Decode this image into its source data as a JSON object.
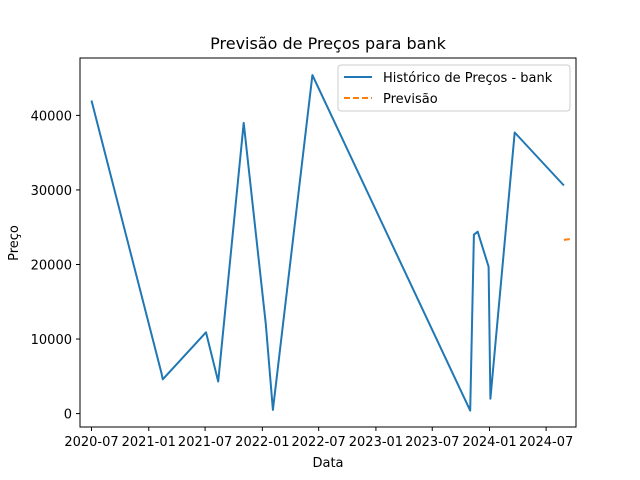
{
  "chart_data": {
    "type": "line",
    "title": "Previsão de Preços para bank",
    "xlabel": "Data",
    "ylabel": "Preço",
    "x_tick_labels": [
      "2020-07",
      "2021-01",
      "2021-07",
      "2022-01",
      "2022-07",
      "2023-01",
      "2023-07",
      "2024-01",
      "2024-07"
    ],
    "x_tick_dates": [
      "2020-07-01",
      "2021-01-01",
      "2021-07-01",
      "2022-01-01",
      "2022-07-01",
      "2023-01-01",
      "2023-07-01",
      "2024-01-01",
      "2024-07-01"
    ],
    "xlim": [
      "2020-05-25",
      "2024-10-05"
    ],
    "y_ticks": [
      0,
      10000,
      20000,
      30000,
      40000
    ],
    "y_tick_labels": [
      "0",
      "10000",
      "20000",
      "30000",
      "40000"
    ],
    "ylim": [
      -1800,
      47700
    ],
    "grid": false,
    "legend_position": "top-right",
    "series": [
      {
        "name": "Histórico de Preços - bank",
        "color": "#1f77b4",
        "style": "solid",
        "x": [
          "2020-07-01",
          "2021-02-11",
          "2021-02-15",
          "2021-07-04",
          "2021-08-12",
          "2021-11-02",
          "2022-01-12",
          "2022-02-04",
          "2022-06-11",
          "2023-10-31",
          "2023-11-12",
          "2023-11-24",
          "2023-12-29",
          "2024-01-04",
          "2024-03-22",
          "2024-08-27"
        ],
        "y": [
          42000,
          5400,
          4600,
          10900,
          4300,
          39000,
          12000,
          500,
          45400,
          400,
          24000,
          24400,
          19700,
          2000,
          37700,
          30600
        ]
      },
      {
        "name": "Previsão",
        "color": "#ff7f0e",
        "style": "dashed",
        "x": [
          "2024-08-27",
          "2024-09-15"
        ],
        "y": [
          23300,
          23400
        ]
      }
    ]
  }
}
